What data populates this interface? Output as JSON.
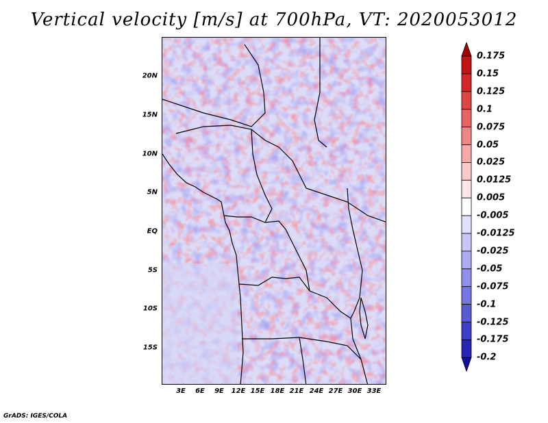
{
  "title": "Vertical velocity [m/s] at 700hPa, VT: 2020053012",
  "footer": "GrADS: IGES/COLA",
  "map": {
    "region": "Central Africa",
    "lat_ticks": [
      "20N",
      "15N",
      "10N",
      "5N",
      "EQ",
      "5S",
      "10S",
      "15S"
    ],
    "lon_ticks": [
      "3E",
      "6E",
      "9E",
      "12E",
      "15E",
      "18E",
      "21E",
      "24E",
      "27E",
      "30E",
      "33E"
    ],
    "lon_range": [
      0,
      35
    ],
    "lat_range": [
      -20,
      24.5
    ],
    "field": "vertical velocity",
    "units": "m/s"
  },
  "colorbar": {
    "labels": [
      "0.175",
      "0.15",
      "0.125",
      "0.1",
      "0.075",
      "0.05",
      "0.025",
      "0.0125",
      "0.005",
      "-0.005",
      "-0.0125",
      "-0.025",
      "-0.05",
      "-0.075",
      "-0.1",
      "-0.125",
      "-0.175",
      "-0.2"
    ],
    "colors": [
      "#a00000",
      "#c01414",
      "#d2282c",
      "#de4646",
      "#e66464",
      "#ee8686",
      "#f5a9a9",
      "#fbcaca",
      "#ffe6e6",
      "#ffffff",
      "#e2e2fc",
      "#c8c8f8",
      "#acacf2",
      "#9090ea",
      "#7676e0",
      "#5a5ad4",
      "#3e3ec6",
      "#2626b4",
      "#1010a0"
    ]
  }
}
